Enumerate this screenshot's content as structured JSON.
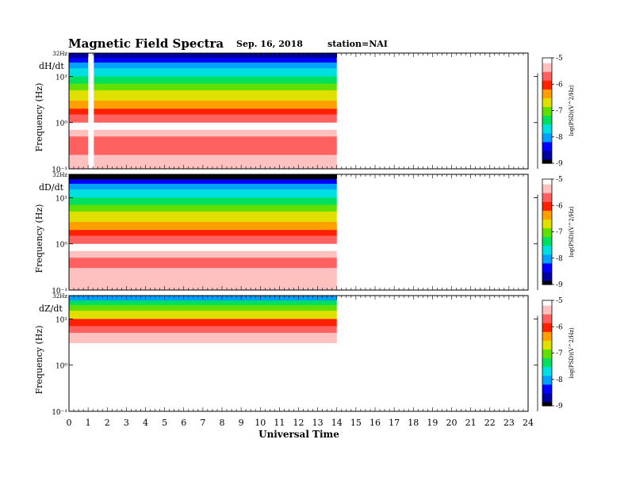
{
  "header": {
    "title": "Magnetic Field Spectra",
    "date": "Sep. 16, 2018",
    "station": "station=NAI"
  },
  "colors": {
    "colormap": [
      "#000000",
      "#0000a0",
      "#0000ff",
      "#00a0ff",
      "#00e0e0",
      "#00e060",
      "#60e000",
      "#e0e000",
      "#ffa000",
      "#ff2000",
      "#ff6060",
      "#ffc0c0",
      "#ffffff"
    ],
    "background": "#ffffff",
    "axis": "#000000"
  },
  "chart_data": [
    {
      "type": "heatmap",
      "component": "dH/dt",
      "xlabel": "Universal Time",
      "ylabel": "Frequency  (Hz)",
      "xlim": [
        0,
        24
      ],
      "x_ticks": [
        "0",
        "1",
        "2",
        "3",
        "4",
        "5",
        "6",
        "7",
        "8",
        "9",
        "10",
        "11",
        "12",
        "13",
        "14",
        "15",
        "16",
        "17",
        "18",
        "19",
        "20",
        "21",
        "22",
        "23",
        "24"
      ],
      "ylim_hz": [
        0.1,
        32
      ],
      "y_scale": "log",
      "y_tick_labels": [
        "32Hz",
        "10¹",
        "10⁰",
        "10⁻¹"
      ],
      "data_coverage_ut": [
        0,
        14
      ],
      "data_gaps_ut": [
        [
          1.0,
          1.3
        ]
      ],
      "colorbar": {
        "label": "log(PSD)(V^2/Hz)",
        "ticks": [
          "-5",
          "-6",
          "-7",
          "-8",
          "-9"
        ],
        "range": [
          -9,
          -5
        ]
      },
      "spectral_profile": {
        "freq_hz": [
          32,
          25,
          20,
          15,
          10,
          7,
          5,
          3,
          2,
          1.5,
          1,
          0.7,
          0.5,
          0.3,
          0.2,
          0.1
        ],
        "log_psd": [
          -9.0,
          -8.6,
          -8.2,
          -7.8,
          -7.3,
          -7.1,
          -6.8,
          -6.5,
          -6.2,
          -6.0,
          -5.3,
          -5.0,
          -5.6,
          -5.7,
          -5.4,
          -5.2
        ]
      }
    },
    {
      "type": "heatmap",
      "component": "dD/dt",
      "xlabel": "Universal Time",
      "ylabel": "Frequency  (Hz)",
      "xlim": [
        0,
        24
      ],
      "ylim_hz": [
        0.1,
        32
      ],
      "y_scale": "log",
      "y_tick_labels": [
        "32Hz",
        "10¹",
        "10⁰",
        "10⁻¹"
      ],
      "data_coverage_ut": [
        0,
        14
      ],
      "data_gaps_ut": [],
      "colorbar": {
        "label": "log(PSD)(V^2/Hz)",
        "ticks": [
          "-5",
          "-6",
          "-7",
          "-8",
          "-9"
        ],
        "range": [
          -9,
          -5
        ]
      },
      "spectral_profile": {
        "freq_hz": [
          32,
          25,
          20,
          15,
          10,
          7,
          5,
          3,
          2,
          1.5,
          1,
          0.7,
          0.5,
          0.3,
          0.2,
          0.1
        ],
        "log_psd": [
          -9.0,
          -8.7,
          -8.3,
          -7.9,
          -7.3,
          -7.1,
          -6.9,
          -6.5,
          -6.2,
          -6.0,
          -5.3,
          -5.0,
          -5.6,
          -5.6,
          -5.4,
          -5.2
        ]
      }
    },
    {
      "type": "heatmap",
      "component": "dZ/dt",
      "xlabel": "Universal Time",
      "ylabel": "Frequency  (Hz)",
      "xlim": [
        0,
        24
      ],
      "ylim_hz": [
        0.1,
        32
      ],
      "y_scale": "log",
      "y_tick_labels": [
        "32Hz",
        "10¹",
        "10⁰",
        "10⁻¹"
      ],
      "data_coverage_ut": [
        0,
        14
      ],
      "data_gaps_ut": [],
      "colorbar": {
        "label": "log(PSD)(V^2/Hz)",
        "ticks": [
          "-5",
          "-6",
          "-7",
          "-8",
          "-9"
        ],
        "range": [
          -9,
          -5
        ]
      },
      "spectral_profile": {
        "freq_hz": [
          32,
          25,
          20,
          15,
          10,
          7,
          5,
          3,
          2,
          1.5,
          1,
          0.7,
          0.5,
          0.3,
          0.2,
          0.1
        ],
        "log_psd": [
          -8.2,
          -7.8,
          -7.2,
          -6.8,
          -6.3,
          -6.0,
          -5.5,
          -5.1,
          -5.0,
          -5.0,
          -5.0,
          -5.0,
          -5.0,
          -5.0,
          -5.0,
          -5.0
        ]
      }
    }
  ]
}
